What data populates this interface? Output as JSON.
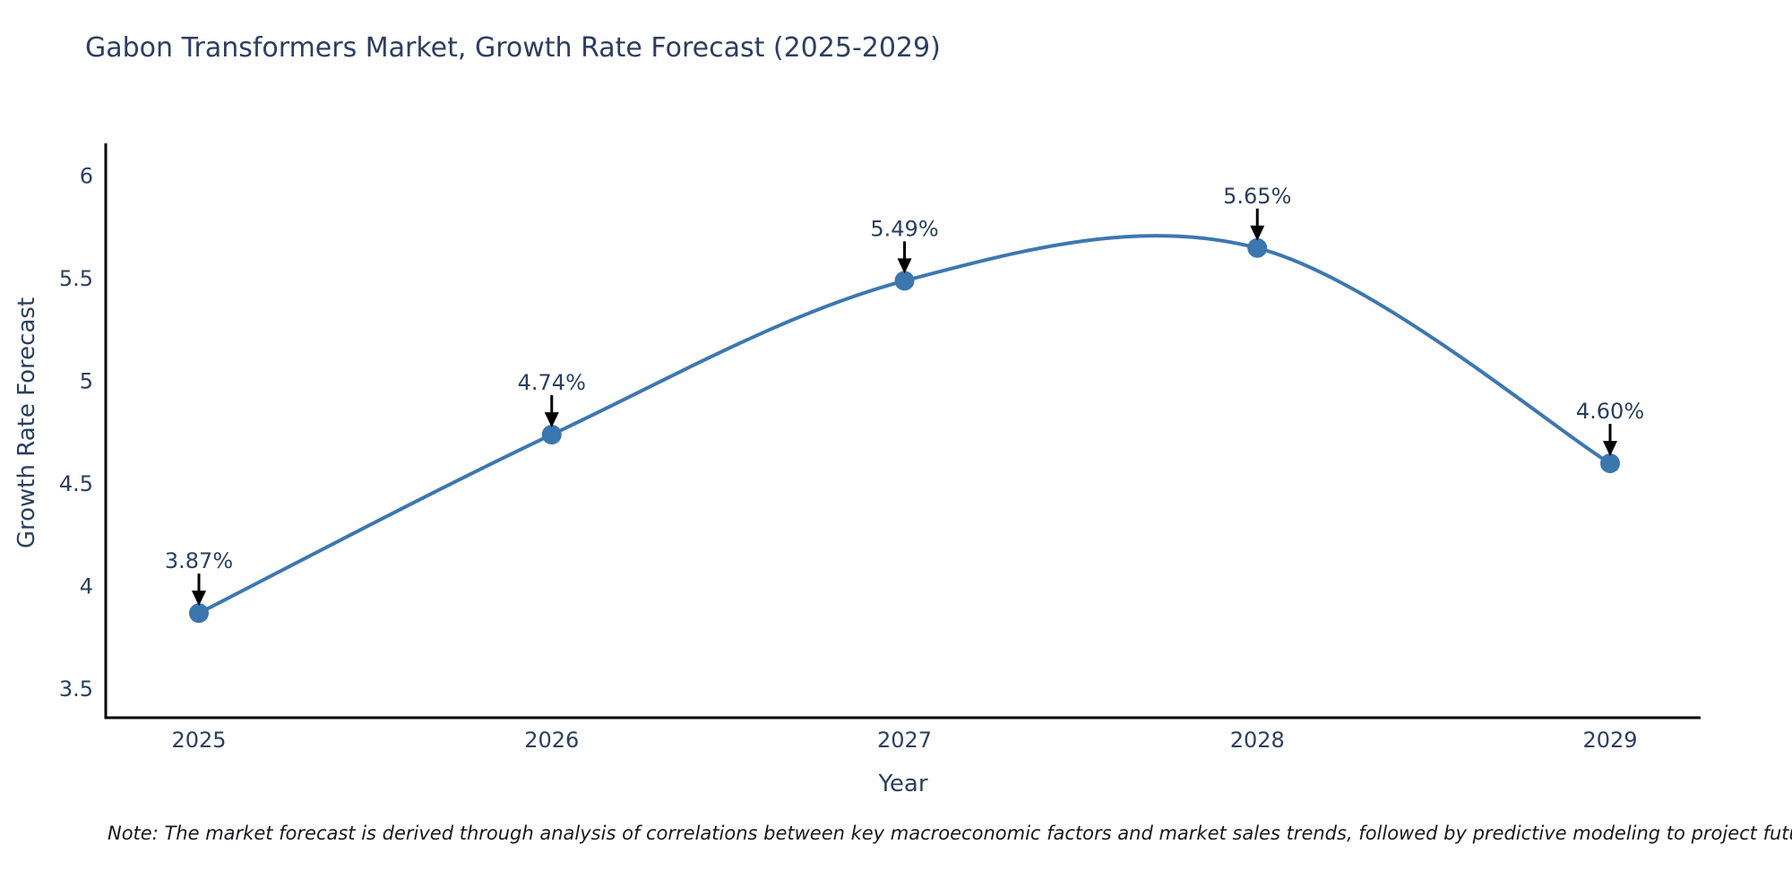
{
  "title": "Gabon Transformers Market, Growth Rate Forecast (2025-2029)",
  "note": "Note: The market forecast is derived through analysis of correlations between key macroeconomic factors and market sales trends, followed by predictive modeling to project future sales",
  "colors": {
    "line": "#3d77b0",
    "marker": "#3b76af",
    "axis": "#000000",
    "arrow": "#000000",
    "text": "#2a3f5f",
    "note_text": "#16181d",
    "background": "#ffffff"
  },
  "chart_data": {
    "type": "line",
    "line_shape": "spline",
    "title": "Gabon Transformers Market, Growth Rate Forecast (2025-2029)",
    "xlabel": "Year",
    "ylabel": "Growth Rate Forecast",
    "x": [
      2025,
      2026,
      2027,
      2028,
      2029
    ],
    "x_tick_labels": [
      "2025",
      "2026",
      "2027",
      "2028",
      "2029"
    ],
    "values": [
      3.87,
      4.74,
      5.49,
      5.65,
      4.6
    ],
    "point_labels": [
      "3.87%",
      "4.74%",
      "5.49%",
      "5.65%",
      "4.60%"
    ],
    "y_ticks": [
      3.5,
      4,
      4.5,
      5,
      5.5,
      6
    ],
    "y_tick_labels": [
      "3.5",
      "4",
      "4.5",
      "5",
      "5.5",
      "6"
    ],
    "ylim": [
      3.36,
      6.16
    ],
    "grid": false,
    "legend": "none",
    "annotations_have_arrows": true
  }
}
